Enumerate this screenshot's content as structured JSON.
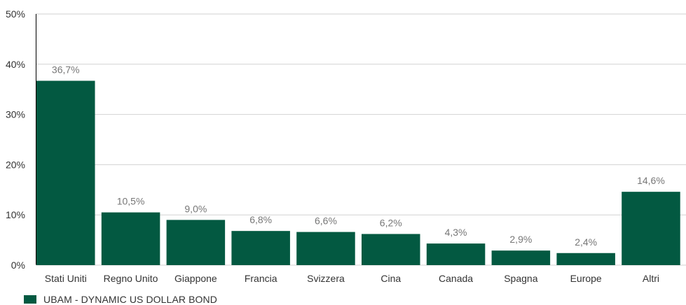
{
  "chart_data": {
    "type": "bar",
    "categories": [
      "Stati Uniti",
      "Regno Unito",
      "Giappone",
      "Francia",
      "Svizzera",
      "Cina",
      "Canada",
      "Spagna",
      "Europe",
      "Altri"
    ],
    "series": [
      {
        "name": "UBAM - DYNAMIC US DOLLAR BOND",
        "values": [
          36.7,
          10.5,
          9.0,
          6.8,
          6.6,
          6.2,
          4.3,
          2.9,
          2.4,
          14.6
        ],
        "data_labels": [
          "36,7%",
          "10,5%",
          "9,0%",
          "6,8%",
          "6,6%",
          "6,2%",
          "4,3%",
          "2,9%",
          "2,4%",
          "14,6%"
        ]
      }
    ],
    "yticks": [
      "0%",
      "10%",
      "20%",
      "30%",
      "40%",
      "50%"
    ],
    "ylim": [
      0,
      50
    ],
    "grid": true,
    "legend_position": "bottom-left",
    "colors": {
      "bar": "#035941",
      "grid": "#d2d2d2",
      "axis": "#000000",
      "tick_text": "#333333",
      "data_label": "#777777"
    }
  }
}
